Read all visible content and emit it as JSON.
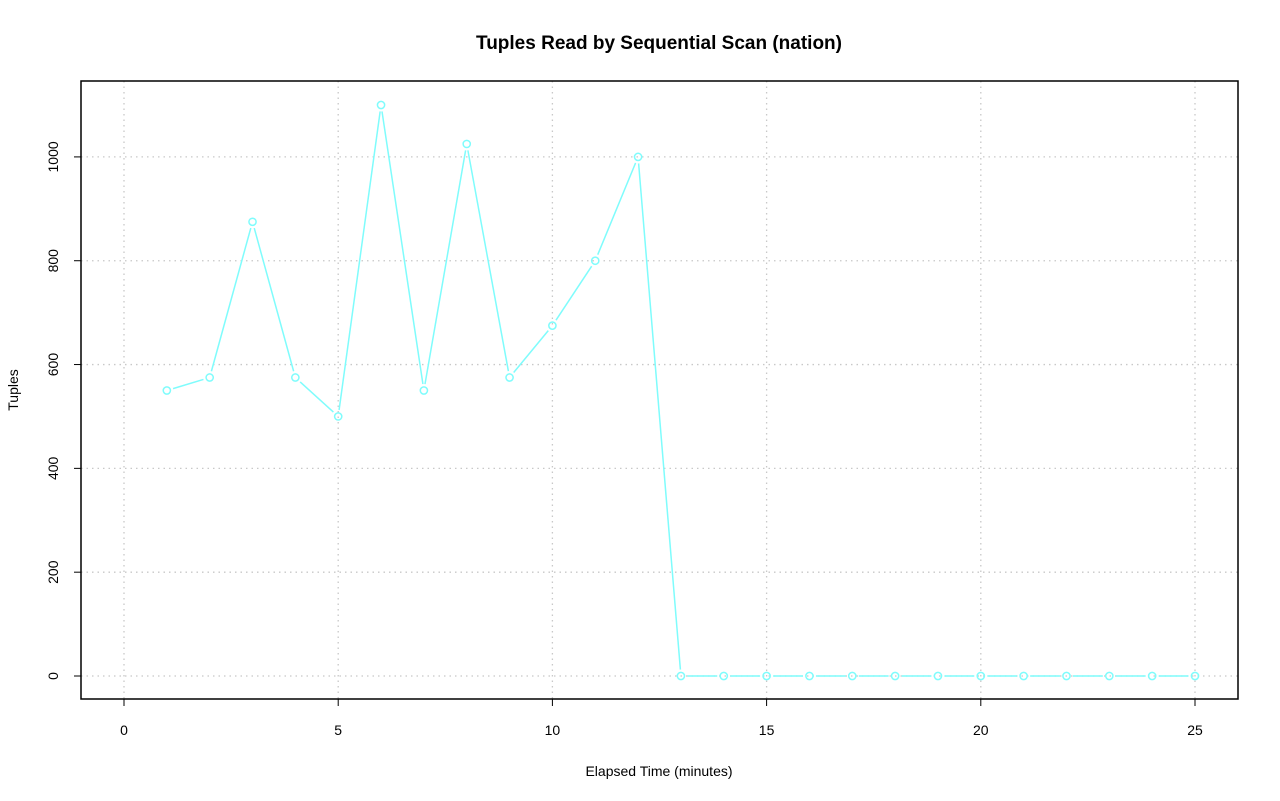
{
  "chart_data": {
    "type": "line",
    "title": "Tuples Read by Sequential Scan (nation)",
    "xlabel": "Elapsed Time (minutes)",
    "ylabel": "Tuples",
    "xlim": [
      0,
      25
    ],
    "ylim": [
      0,
      1100
    ],
    "x_ticks": [
      0,
      5,
      10,
      15,
      20,
      25
    ],
    "y_ticks": [
      0,
      200,
      400,
      600,
      800,
      1000
    ],
    "grid": true,
    "legend": "none",
    "series": [
      {
        "color": "#7ffcfc",
        "marker": "open-circle",
        "x": [
          1,
          2,
          3,
          4,
          5,
          6,
          7,
          8,
          9,
          10,
          11,
          12,
          13,
          14,
          15,
          16,
          17,
          18,
          19,
          20,
          21,
          22,
          23,
          24,
          25
        ],
        "y": [
          550,
          575,
          875,
          575,
          500,
          1100,
          550,
          1025,
          575,
          675,
          800,
          1000,
          0,
          0,
          0,
          0,
          0,
          0,
          0,
          0,
          0,
          0,
          0,
          0,
          0
        ]
      }
    ]
  }
}
